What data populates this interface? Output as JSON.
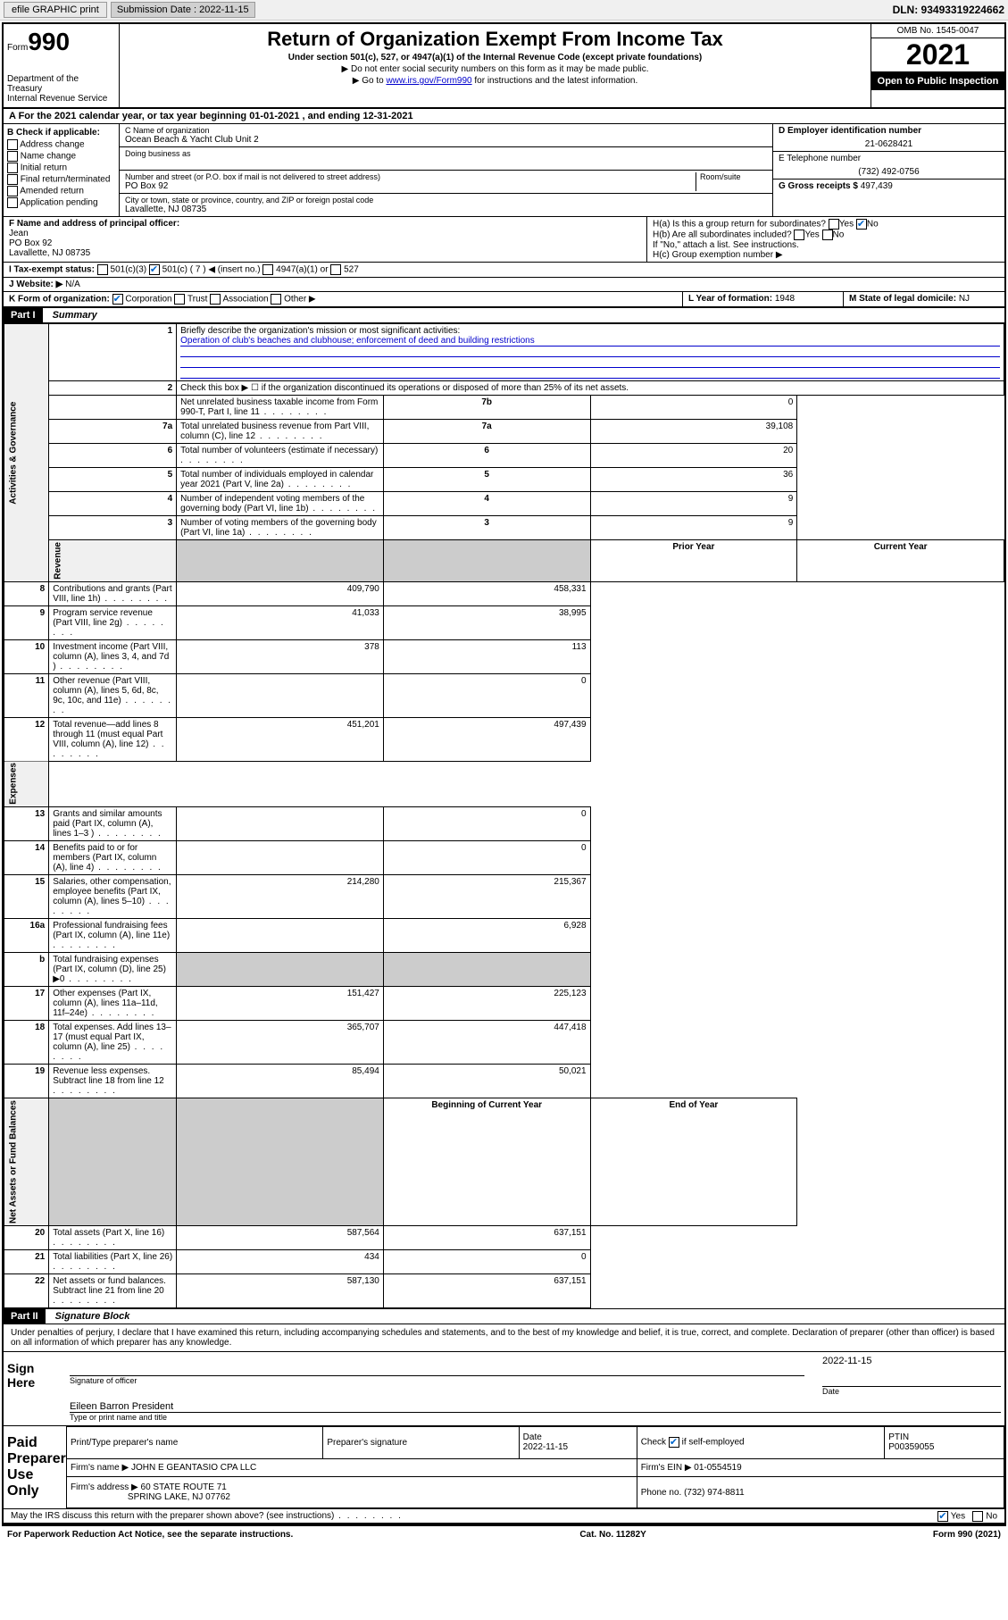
{
  "toolbar": {
    "efile": "efile GRAPHIC print",
    "submission_label": "Submission Date : 2022-11-15",
    "dln": "DLN: 93493319224662"
  },
  "header": {
    "form_word": "Form",
    "form_num": "990",
    "dept": "Department of the Treasury",
    "irs": "Internal Revenue Service",
    "title": "Return of Organization Exempt From Income Tax",
    "subtitle": "Under section 501(c), 527, or 4947(a)(1) of the Internal Revenue Code (except private foundations)",
    "note1": "▶ Do not enter social security numbers on this form as it may be made public.",
    "note2_pre": "▶ Go to ",
    "note2_link": "www.irs.gov/Form990",
    "note2_post": " for instructions and the latest information.",
    "omb": "OMB No. 1545-0047",
    "year": "2021",
    "inspect": "Open to Public Inspection"
  },
  "row_a": "A For the 2021 calendar year, or tax year beginning 01-01-2021   , and ending 12-31-2021",
  "section_b": {
    "label": "B Check if applicable:",
    "opts": [
      "Address change",
      "Name change",
      "Initial return",
      "Final return/terminated",
      "Amended return",
      "Application pending"
    ]
  },
  "section_c": {
    "name_lbl": "C Name of organization",
    "name": "Ocean Beach & Yacht Club Unit 2",
    "dba_lbl": "Doing business as",
    "addr_lbl": "Number and street (or P.O. box if mail is not delivered to street address)",
    "room_lbl": "Room/suite",
    "addr": "PO Box 92",
    "city_lbl": "City or town, state or province, country, and ZIP or foreign postal code",
    "city": "Lavallette, NJ  08735"
  },
  "section_d": {
    "ein_lbl": "D Employer identification number",
    "ein": "21-0628421",
    "tel_lbl": "E Telephone number",
    "tel": "(732) 492-0756",
    "gross_lbl": "G Gross receipts $",
    "gross": "497,439"
  },
  "section_f": {
    "lbl": "F Name and address of principal officer:",
    "name": "Jean",
    "addr1": "PO Box 92",
    "addr2": "Lavallette, NJ  08735"
  },
  "section_h": {
    "ha": "H(a)  Is this a group return for subordinates?",
    "hb": "H(b)  Are all subordinates included?",
    "hb_note": "If \"No,\" attach a list. See instructions.",
    "hc": "H(c)  Group exemption number ▶"
  },
  "section_i": {
    "lbl": "I  Tax-exempt status:",
    "c3": "501(c)(3)",
    "c": "501(c) ( 7 ) ◀ (insert no.)",
    "a1": "4947(a)(1) or",
    "s527": "527"
  },
  "section_j": {
    "lbl": "J  Website: ▶",
    "val": "N/A"
  },
  "section_k": {
    "lbl": "K Form of organization:",
    "corp": "Corporation",
    "trust": "Trust",
    "assoc": "Association",
    "other": "Other ▶"
  },
  "section_l": {
    "lbl": "L Year of formation:",
    "val": "1948"
  },
  "section_m": {
    "lbl": "M State of legal domicile:",
    "val": "NJ"
  },
  "part1": {
    "hdr": "Part I",
    "title": "Summary"
  },
  "summary": {
    "q1": "Briefly describe the organization's mission or most significant activities:",
    "q1_ans": "Operation of club's beaches and clubhouse; enforcement of deed and building restrictions",
    "q2": "Check this box ▶ ☐  if the organization discontinued its operations or disposed of more than 25% of its net assets.",
    "rows_gov": [
      {
        "n": "3",
        "d": "Number of voting members of the governing body (Part VI, line 1a)",
        "b": "3",
        "v": "9"
      },
      {
        "n": "4",
        "d": "Number of independent voting members of the governing body (Part VI, line 1b)",
        "b": "4",
        "v": "9"
      },
      {
        "n": "5",
        "d": "Total number of individuals employed in calendar year 2021 (Part V, line 2a)",
        "b": "5",
        "v": "36"
      },
      {
        "n": "6",
        "d": "Total number of volunteers (estimate if necessary)",
        "b": "6",
        "v": "20"
      },
      {
        "n": "7a",
        "d": "Total unrelated business revenue from Part VIII, column (C), line 12",
        "b": "7a",
        "v": "39,108"
      },
      {
        "n": "",
        "d": "Net unrelated business taxable income from Form 990-T, Part I, line 11",
        "b": "7b",
        "v": "0"
      }
    ],
    "col_hdr_prior": "Prior Year",
    "col_hdr_curr": "Current Year",
    "rows_rev": [
      {
        "n": "8",
        "d": "Contributions and grants (Part VIII, line 1h)",
        "p": "409,790",
        "c": "458,331"
      },
      {
        "n": "9",
        "d": "Program service revenue (Part VIII, line 2g)",
        "p": "41,033",
        "c": "38,995"
      },
      {
        "n": "10",
        "d": "Investment income (Part VIII, column (A), lines 3, 4, and 7d )",
        "p": "378",
        "c": "113"
      },
      {
        "n": "11",
        "d": "Other revenue (Part VIII, column (A), lines 5, 6d, 8c, 9c, 10c, and 11e)",
        "p": "",
        "c": "0"
      },
      {
        "n": "12",
        "d": "Total revenue—add lines 8 through 11 (must equal Part VIII, column (A), line 12)",
        "p": "451,201",
        "c": "497,439"
      }
    ],
    "rows_exp": [
      {
        "n": "13",
        "d": "Grants and similar amounts paid (Part IX, column (A), lines 1–3 )",
        "p": "",
        "c": "0"
      },
      {
        "n": "14",
        "d": "Benefits paid to or for members (Part IX, column (A), line 4)",
        "p": "",
        "c": "0"
      },
      {
        "n": "15",
        "d": "Salaries, other compensation, employee benefits (Part IX, column (A), lines 5–10)",
        "p": "214,280",
        "c": "215,367"
      },
      {
        "n": "16a",
        "d": "Professional fundraising fees (Part IX, column (A), line 11e)",
        "p": "",
        "c": "6,928"
      },
      {
        "n": "b",
        "d": "Total fundraising expenses (Part IX, column (D), line 25) ▶0",
        "p": "shaded",
        "c": "shaded"
      },
      {
        "n": "17",
        "d": "Other expenses (Part IX, column (A), lines 11a–11d, 11f–24e)",
        "p": "151,427",
        "c": "225,123"
      },
      {
        "n": "18",
        "d": "Total expenses. Add lines 13–17 (must equal Part IX, column (A), line 25)",
        "p": "365,707",
        "c": "447,418"
      },
      {
        "n": "19",
        "d": "Revenue less expenses. Subtract line 18 from line 12",
        "p": "85,494",
        "c": "50,021"
      }
    ],
    "col_hdr_beg": "Beginning of Current Year",
    "col_hdr_end": "End of Year",
    "rows_net": [
      {
        "n": "20",
        "d": "Total assets (Part X, line 16)",
        "p": "587,564",
        "c": "637,151"
      },
      {
        "n": "21",
        "d": "Total liabilities (Part X, line 26)",
        "p": "434",
        "c": "0"
      },
      {
        "n": "22",
        "d": "Net assets or fund balances. Subtract line 21 from line 20",
        "p": "587,130",
        "c": "637,151"
      }
    ],
    "side_gov": "Activities & Governance",
    "side_rev": "Revenue",
    "side_exp": "Expenses",
    "side_net": "Net Assets or Fund Balances"
  },
  "part2": {
    "hdr": "Part II",
    "title": "Signature Block"
  },
  "sig": {
    "perjury": "Under penalties of perjury, I declare that I have examined this return, including accompanying schedules and statements, and to the best of my knowledge and belief, it is true, correct, and complete. Declaration of preparer (other than officer) is based on all information of which preparer has any knowledge.",
    "sign_here": "Sign Here",
    "date": "2022-11-15",
    "sig_officer": "Signature of officer",
    "date_lbl": "Date",
    "officer_name": "Eileen Barron President",
    "type_name": "Type or print name and title"
  },
  "prep": {
    "title": "Paid Preparer Use Only",
    "col1": "Print/Type preparer's name",
    "col2": "Preparer's signature",
    "col3_lbl": "Date",
    "col3": "2022-11-15",
    "col4": "Check ☑ if self-employed",
    "col5_lbl": "PTIN",
    "col5": "P00359055",
    "firm_name_lbl": "Firm's name    ▶",
    "firm_name": "JOHN E GEANTASIO CPA LLC",
    "firm_ein_lbl": "Firm's EIN ▶",
    "firm_ein": "01-0554519",
    "firm_addr_lbl": "Firm's address ▶",
    "firm_addr1": "60 STATE ROUTE 71",
    "firm_addr2": "SPRING LAKE, NJ  07762",
    "phone_lbl": "Phone no.",
    "phone": "(732) 974-8811"
  },
  "discuss": "May the IRS discuss this return with the preparer shown above? (see instructions)",
  "footer": {
    "left": "For Paperwork Reduction Act Notice, see the separate instructions.",
    "mid": "Cat. No. 11282Y",
    "right": "Form 990 (2021)"
  },
  "colors": {
    "link": "#0000cc",
    "check": "#0066cc",
    "shade": "#cccccc"
  }
}
